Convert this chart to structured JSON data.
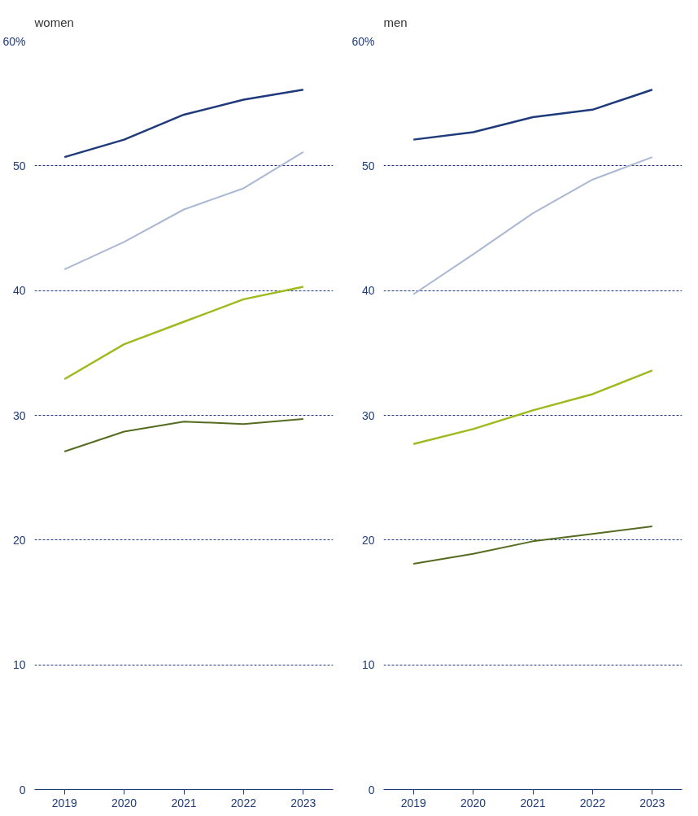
{
  "chart_data": [
    {
      "type": "line",
      "title": "women",
      "categories": [
        "2019",
        "2020",
        "2021",
        "2022",
        "2023"
      ],
      "ylim": [
        0,
        60
      ],
      "yticks": [
        0,
        10,
        20,
        30,
        40,
        50,
        {
          "value": 60,
          "label": "60%"
        }
      ],
      "grid": "y",
      "marker": "none",
      "line_style": "solid",
      "series": [
        {
          "color": "#1f3a7a",
          "values": [
            50.7,
            52.1,
            54.1,
            55.3,
            56.1
          ]
        },
        {
          "color": "#aab8d4",
          "values": [
            41.7,
            43.9,
            46.5,
            48.2,
            51.1
          ]
        },
        {
          "color": "#9dbb1e",
          "values": [
            32.9,
            35.7,
            37.5,
            39.3,
            40.3
          ]
        },
        {
          "color": "#556b1f",
          "values": [
            27.1,
            28.7,
            29.5,
            29.3,
            29.7
          ]
        }
      ]
    },
    {
      "type": "line",
      "title": "men",
      "categories": [
        "2019",
        "2020",
        "2021",
        "2022",
        "2023"
      ],
      "ylim": [
        0,
        60
      ],
      "yticks": [
        0,
        10,
        20,
        30,
        40,
        50,
        {
          "value": 60,
          "label": "60%"
        }
      ],
      "grid": "y",
      "marker": "none",
      "line_style": "solid",
      "series": [
        {
          "color": "#1f3a7a",
          "values": [
            52.1,
            52.7,
            53.9,
            54.5,
            56.1
          ]
        },
        {
          "color": "#aab8d4",
          "values": [
            39.7,
            42.9,
            46.2,
            48.9,
            50.7
          ]
        },
        {
          "color": "#9dbb1e",
          "values": [
            27.7,
            28.9,
            30.4,
            31.7,
            33.6
          ]
        },
        {
          "color": "#556b1f",
          "values": [
            18.1,
            18.9,
            19.9,
            20.5,
            21.1
          ]
        }
      ]
    }
  ]
}
